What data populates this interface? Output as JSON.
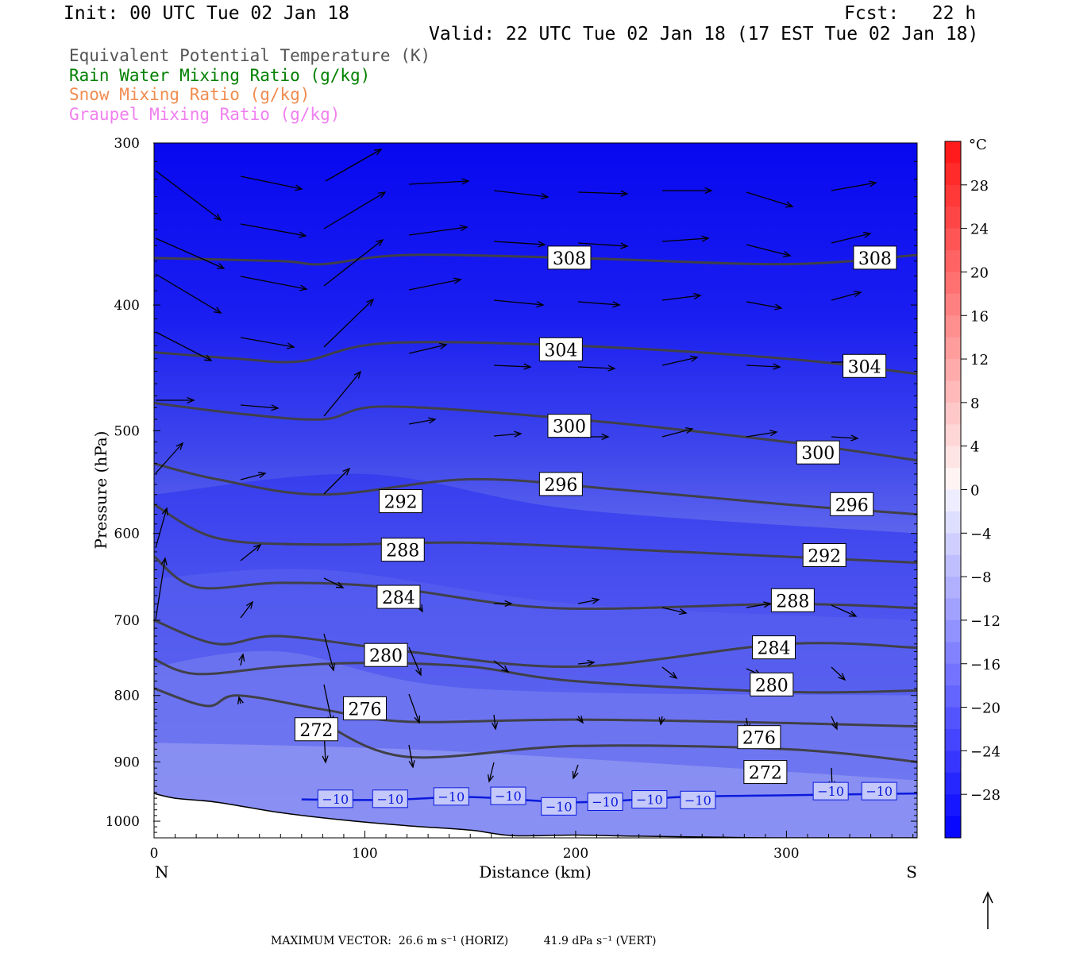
{
  "header": {
    "init": "Init: 00 UTC Tue 02 Jan 18",
    "fcst": "Fcst:   22 h",
    "valid": "Valid: 22 UTC Tue 02 Jan 18 (17 EST Tue 02 Jan 18)"
  },
  "legend": [
    {
      "label": "Equivalent Potential Temperature (K)",
      "color": "#555555"
    },
    {
      "label": "Rain Water Mixing Ratio (g/kg)",
      "color": "#008000"
    },
    {
      "label": "Snow Mixing Ratio (g/kg)",
      "color": "#f08c50"
    },
    {
      "label": "Graupel Mixing Ratio (g/kg)",
      "color": "#f080f0"
    }
  ],
  "chart_data": {
    "type": "cross-section",
    "xlabel": "Distance (km)",
    "ylabel": "Pressure (hPa)",
    "xlim": [
      0,
      362
    ],
    "ylim": [
      1030,
      300
    ],
    "y_log": true,
    "x_ticks": [
      0,
      100,
      200,
      300
    ],
    "y_ticks": [
      300,
      400,
      500,
      600,
      700,
      800,
      900,
      1000
    ],
    "x_end_labels": {
      "left": "N",
      "right": "S"
    },
    "colorbar": {
      "unit": "°C",
      "tick_labels": [
        "28",
        "24",
        "20",
        "16",
        "12",
        "8",
        "4",
        "0",
        "−4",
        "−8",
        "−12",
        "−16",
        "−20",
        "−24",
        "−28"
      ],
      "tick_values": [
        28,
        24,
        20,
        16,
        12,
        8,
        4,
        0,
        -4,
        -8,
        -12,
        -16,
        -20,
        -24,
        -28
      ]
    },
    "theta_e_contours": [
      {
        "value": 308,
        "label": "308",
        "points": [
          [
            0,
            368
          ],
          [
            60,
            370
          ],
          [
            80,
            372
          ],
          [
            120,
            366
          ],
          [
            200,
            368
          ],
          [
            300,
            372
          ],
          [
            362,
            366
          ]
        ],
        "label_at": [
          [
            197,
            368
          ],
          [
            342,
            368
          ]
        ]
      },
      {
        "value": 304,
        "label": "304",
        "points": [
          [
            0,
            435
          ],
          [
            40,
            440
          ],
          [
            70,
            442
          ],
          [
            110,
            428
          ],
          [
            200,
            430
          ],
          [
            300,
            440
          ],
          [
            362,
            452
          ]
        ],
        "label_at": [
          [
            193,
            433
          ],
          [
            337,
            446
          ]
        ]
      },
      {
        "value": 300,
        "label": "300",
        "points": [
          [
            0,
            476
          ],
          [
            40,
            485
          ],
          [
            80,
            490
          ],
          [
            110,
            479
          ],
          [
            200,
            490
          ],
          [
            300,
            510
          ],
          [
            362,
            527
          ]
        ],
        "label_at": [
          [
            197,
            496
          ],
          [
            315,
            520
          ]
        ]
      },
      {
        "value": 296,
        "label": "296",
        "points": [
          [
            0,
            530
          ],
          [
            30,
            545
          ],
          [
            80,
            560
          ],
          [
            150,
            545
          ],
          [
            220,
            555
          ],
          [
            300,
            570
          ],
          [
            362,
            580
          ]
        ],
        "label_at": [
          [
            193,
            550
          ],
          [
            331,
            570
          ]
        ]
      },
      {
        "value": 292,
        "label": "292",
        "points": [
          [
            0,
            570
          ],
          [
            30,
            605
          ],
          [
            80,
            612
          ],
          [
            150,
            610
          ],
          [
            250,
            620
          ],
          [
            362,
            632
          ]
        ],
        "label_at": [
          [
            117,
            567
          ],
          [
            318,
            624
          ]
        ]
      },
      {
        "value": 288,
        "label": "288",
        "points": [
          [
            0,
            625
          ],
          [
            20,
            660
          ],
          [
            60,
            655
          ],
          [
            110,
            660
          ],
          [
            190,
            685
          ],
          [
            300,
            680
          ],
          [
            362,
            685
          ]
        ],
        "label_at": [
          [
            118,
            618
          ],
          [
            303,
            676
          ]
        ]
      },
      {
        "value": 284,
        "label": "284",
        "points": [
          [
            0,
            700
          ],
          [
            30,
            730
          ],
          [
            60,
            720
          ],
          [
            120,
            740
          ],
          [
            200,
            760
          ],
          [
            300,
            730
          ],
          [
            362,
            735
          ]
        ],
        "label_at": [
          [
            116,
            672
          ],
          [
            294,
            735
          ]
        ]
      },
      {
        "value": 280,
        "label": "280",
        "points": [
          [
            0,
            750
          ],
          [
            20,
            770
          ],
          [
            60,
            760
          ],
          [
            100,
            755
          ],
          [
            150,
            760
          ],
          [
            200,
            780
          ],
          [
            300,
            795
          ],
          [
            362,
            793
          ]
        ],
        "label_at": [
          [
            110,
            745
          ],
          [
            293,
            785
          ]
        ]
      },
      {
        "value": 276,
        "label": "276",
        "points": [
          [
            0,
            790
          ],
          [
            25,
            815
          ],
          [
            40,
            800
          ],
          [
            80,
            820
          ],
          [
            120,
            838
          ],
          [
            200,
            835
          ],
          [
            300,
            840
          ],
          [
            362,
            845
          ]
        ],
        "label_at": [
          [
            100,
            819
          ],
          [
            287,
            862
          ]
        ]
      },
      {
        "value": 272,
        "label": "272",
        "points": [
          [
            80,
            840
          ],
          [
            120,
            892
          ],
          [
            200,
            875
          ],
          [
            300,
            880
          ],
          [
            362,
            900
          ]
        ],
        "label_at": [
          [
            77,
            850
          ],
          [
            290,
            917
          ]
        ]
      }
    ],
    "temperature_contours": [
      {
        "value": -10,
        "label": "−10",
        "points": [
          [
            70,
            962
          ],
          [
            110,
            963
          ],
          [
            150,
            958
          ],
          [
            200,
            967
          ],
          [
            250,
            958
          ],
          [
            300,
            955
          ],
          [
            362,
            952
          ]
        ],
        "label_at": [
          [
            86,
            961
          ],
          [
            112,
            961
          ],
          [
            141,
            957
          ],
          [
            168,
            956
          ],
          [
            192,
            974
          ],
          [
            214,
            966
          ],
          [
            235,
            962
          ],
          [
            258,
            963
          ],
          [
            321,
            948
          ],
          [
            344,
            948
          ]
        ]
      }
    ],
    "wind_vectors_note": "in-plane circulation vectors (horizontal + vertical)",
    "max_vector": {
      "text": "MAXIMUM VECTOR:  26.6 m s⁻¹ (HORIZ)          41.9 dPa s⁻¹ (VERT)",
      "horiz": 26.6,
      "horiz_unit": "m s⁻¹",
      "vert": 41.9,
      "vert_unit": "dPa s⁻¹"
    }
  }
}
